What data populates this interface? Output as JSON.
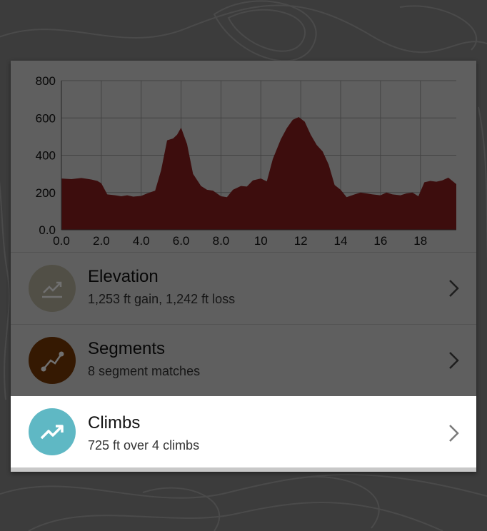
{
  "colors": {
    "elevation_fill": "#8b1e1e",
    "elevation_icon_bg": "#b8b4a0",
    "segments_icon_bg": "#7a3a06",
    "climbs_icon_bg": "#5fb8c4",
    "card_bg": "#d9d9d9"
  },
  "chart_data": {
    "type": "area",
    "ylim": [
      0,
      800
    ],
    "xlim": [
      0,
      19.8
    ],
    "yticks": [
      "0.0",
      "200",
      "400",
      "600",
      "800"
    ],
    "xticks": [
      "0.0",
      "2.0",
      "4.0",
      "6.0",
      "8.0",
      "10",
      "12",
      "14",
      "16",
      "18"
    ],
    "grid": true,
    "x": [
      0,
      0.5,
      1,
      1.5,
      1.8,
      2,
      2.3,
      2.7,
      3,
      3.3,
      3.6,
      4,
      4.3,
      4.7,
      5,
      5.3,
      5.6,
      5.8,
      6,
      6.3,
      6.6,
      7,
      7.3,
      7.6,
      8,
      8.3,
      8.6,
      9,
      9.3,
      9.6,
      10,
      10.3,
      10.6,
      11,
      11.3,
      11.6,
      11.9,
      12.2,
      12.5,
      12.8,
      13.1,
      13.4,
      13.7,
      14,
      14.3,
      14.7,
      15,
      15.3,
      15.6,
      16,
      16.3,
      16.6,
      17,
      17.3,
      17.6,
      17.9,
      18.2,
      18.5,
      18.8,
      19.1,
      19.4,
      19.8
    ],
    "y": [
      275,
      272,
      278,
      270,
      262,
      250,
      190,
      185,
      180,
      185,
      178,
      182,
      195,
      210,
      320,
      480,
      490,
      510,
      548,
      460,
      300,
      235,
      215,
      210,
      180,
      175,
      215,
      235,
      232,
      265,
      275,
      260,
      380,
      485,
      545,
      590,
      605,
      580,
      510,
      455,
      420,
      350,
      240,
      215,
      175,
      190,
      200,
      195,
      190,
      185,
      200,
      190,
      185,
      195,
      200,
      180,
      255,
      262,
      258,
      265,
      280,
      245
    ]
  },
  "rows": [
    {
      "title": "Elevation",
      "subtitle": "1,253 ft gain, 1,242 ft loss"
    },
    {
      "title": "Segments",
      "subtitle": "8 segment matches"
    },
    {
      "title": "Climbs",
      "subtitle": "725 ft over 4 climbs"
    }
  ]
}
